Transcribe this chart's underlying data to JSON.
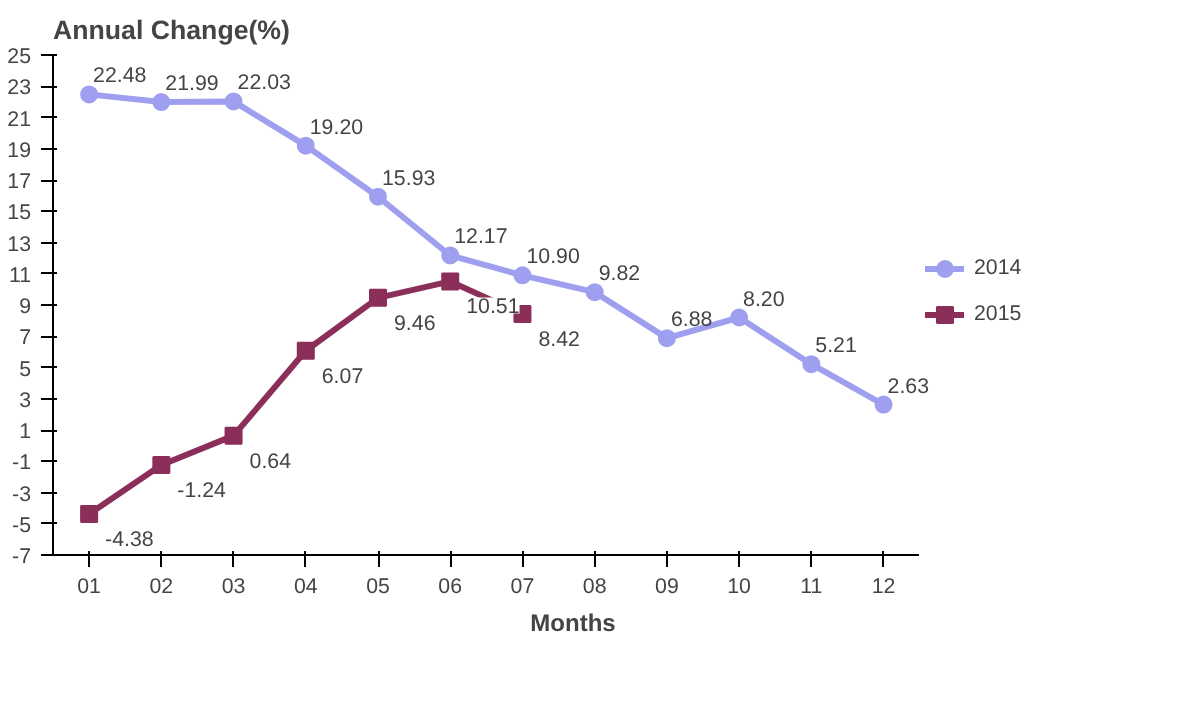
{
  "chart_data": {
    "type": "line",
    "title": "Annual Change(%)",
    "xlabel": "Months",
    "categories": [
      "01",
      "02",
      "03",
      "04",
      "05",
      "06",
      "07",
      "08",
      "09",
      "10",
      "11",
      "12"
    ],
    "series": [
      {
        "name": "2014",
        "color": "#9f9ff0",
        "marker": "circle",
        "values": [
          22.48,
          21.99,
          22.03,
          19.2,
          15.93,
          12.17,
          10.9,
          9.82,
          6.88,
          8.2,
          5.21,
          2.63
        ],
        "value_labels": [
          "22.48",
          "21.99",
          "22.03",
          "19.20",
          "15.93",
          "12.17",
          "10.90",
          "9.82",
          "6.88",
          "8.20",
          "5.21",
          "2.63"
        ]
      },
      {
        "name": "2015",
        "color": "#8b2e5a",
        "marker": "square",
        "values": [
          -4.38,
          -1.24,
          0.64,
          6.07,
          9.46,
          10.51,
          8.42,
          null,
          null,
          null,
          null,
          null
        ],
        "value_labels": [
          "-4.38",
          "-1.24",
          "0.64",
          "6.07",
          "9.46",
          "10.51",
          "8.42",
          null,
          null,
          null,
          null,
          null
        ]
      }
    ],
    "ylim": [
      -7,
      25
    ],
    "yticks": [
      -7,
      -5,
      -3,
      -1,
      1,
      3,
      5,
      7,
      9,
      11,
      13,
      15,
      17,
      19,
      21,
      23,
      25
    ],
    "grid": false,
    "legend": "right",
    "line_style": "solid"
  }
}
